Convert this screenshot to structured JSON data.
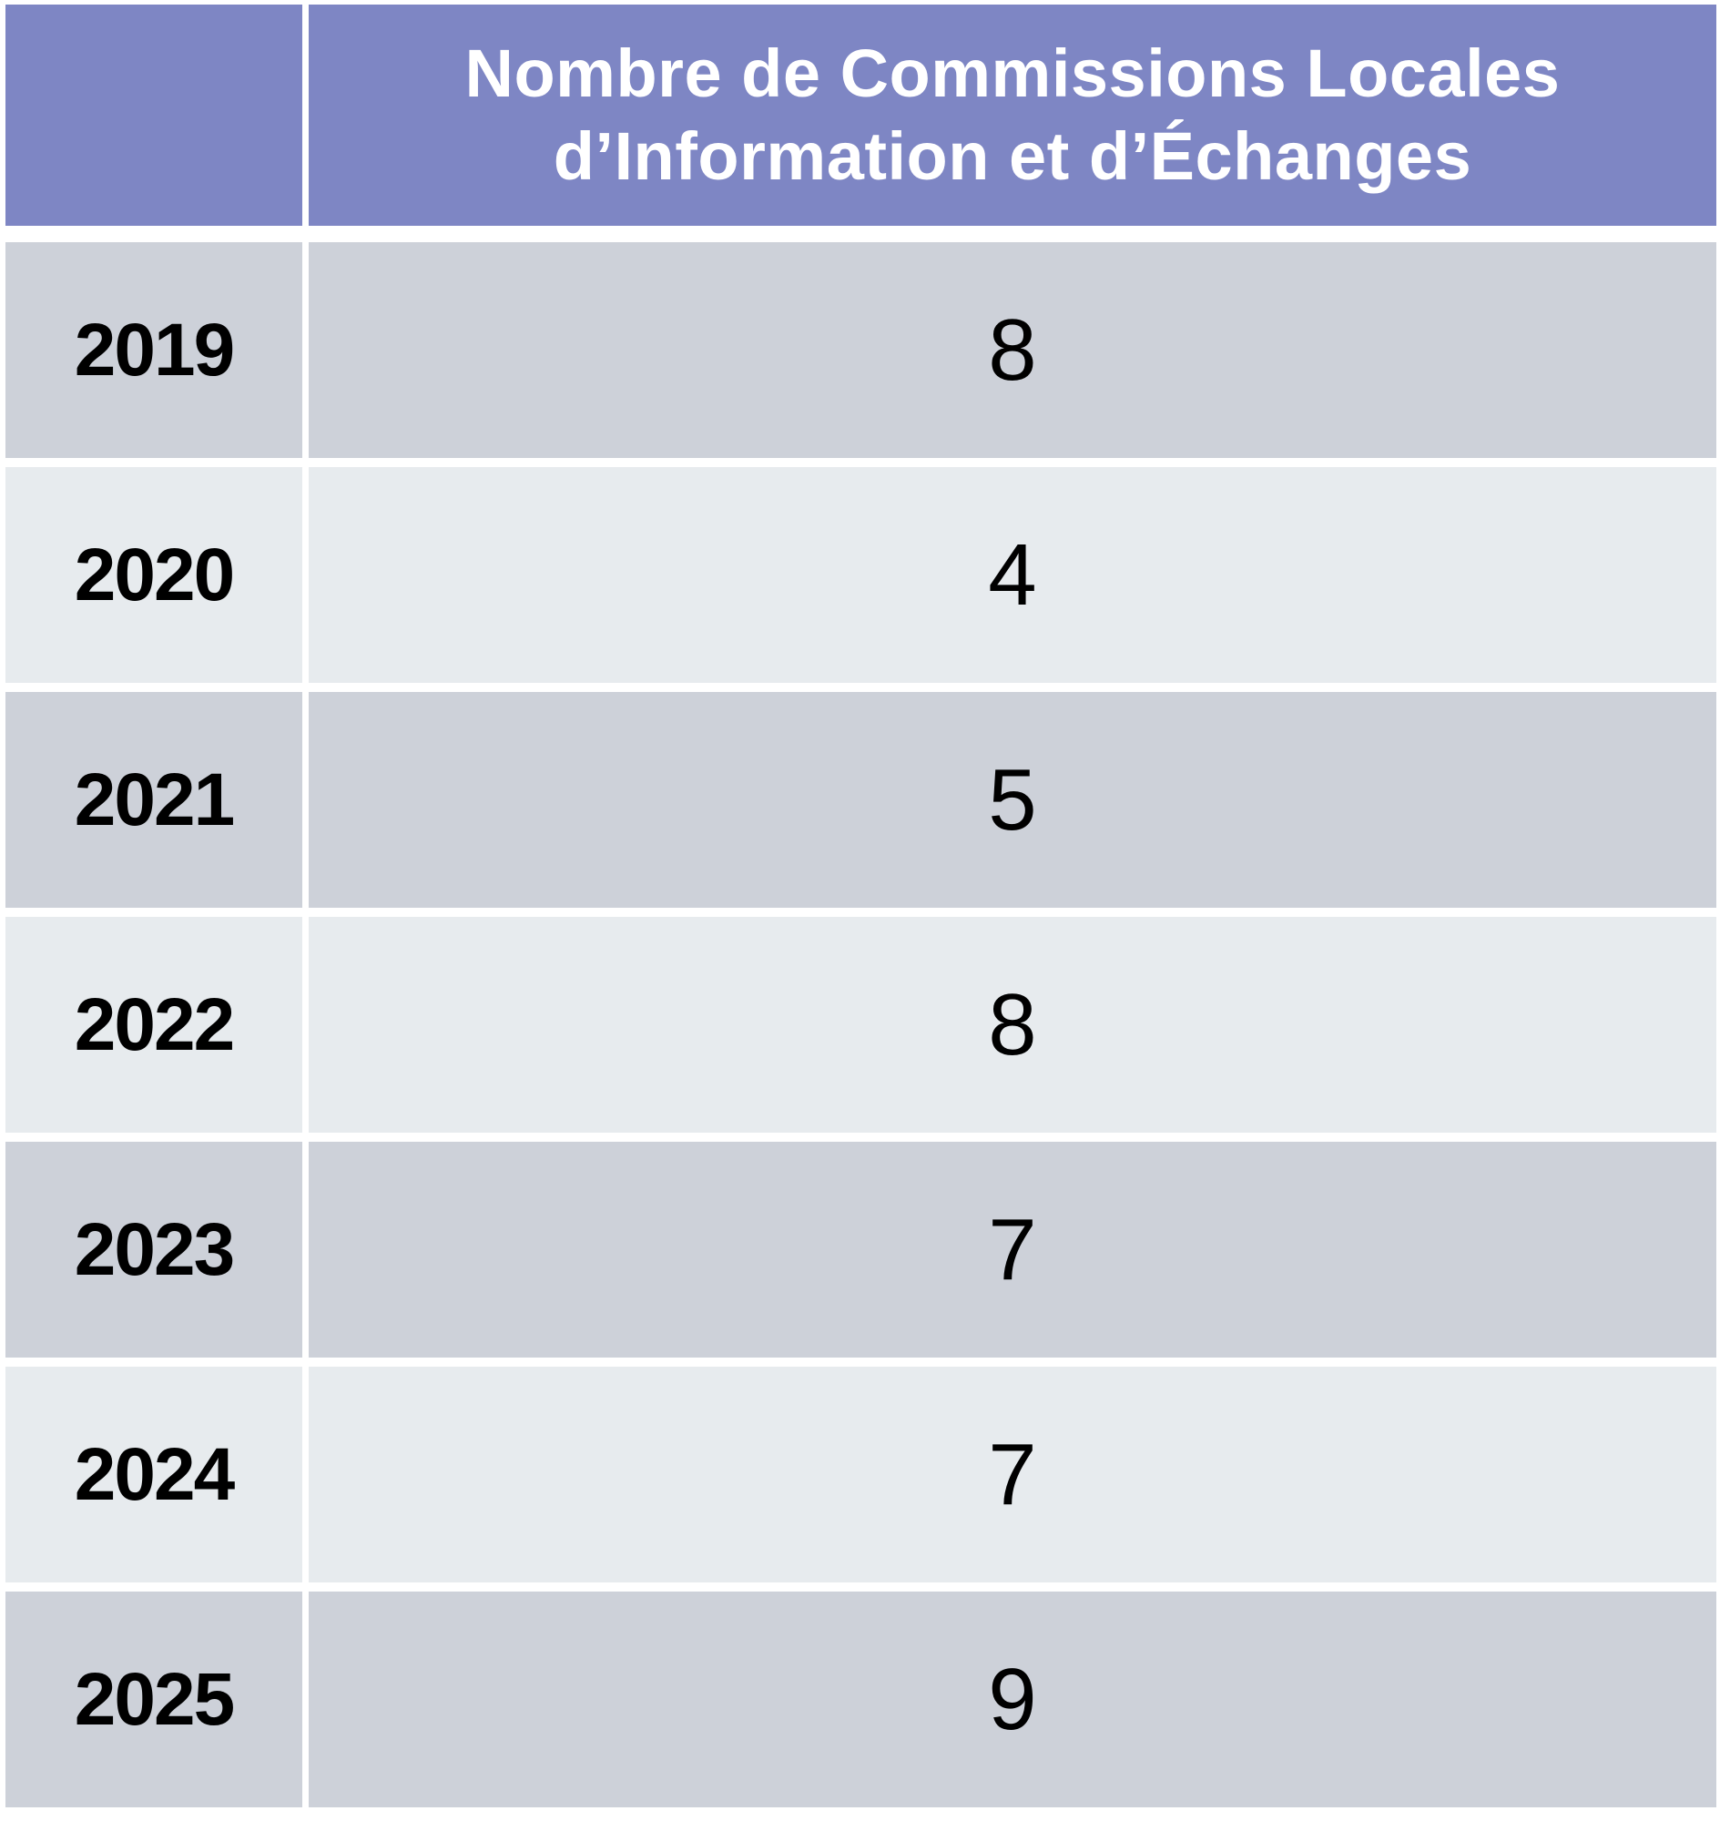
{
  "table": {
    "header": {
      "year_col_label": "",
      "title_full": "Nombre de Commissions Locales d’Information et d’Échanges",
      "title_lines": [
        "Nombre de Commissions Locales",
        "d’Information et d’Échanges"
      ]
    },
    "rows": [
      {
        "year": "2019",
        "value": "8"
      },
      {
        "year": "2020",
        "value": "4"
      },
      {
        "year": "2021",
        "value": "5"
      },
      {
        "year": "2022",
        "value": "8"
      },
      {
        "year": "2023",
        "value": "7"
      },
      {
        "year": "2024",
        "value": "7"
      },
      {
        "year": "2025",
        "value": "9"
      }
    ],
    "colors": {
      "header_bg": "#7e86c4",
      "header_text": "#ffffff",
      "row_dark": "#cdd1d9",
      "row_light": "#e7ebee",
      "gap": "#ffffff",
      "cell_text": "#000000"
    }
  },
  "chart_data": {
    "type": "table",
    "title": "Nombre de Commissions Locales d’Information et d’Échanges",
    "categories": [
      "2019",
      "2020",
      "2021",
      "2022",
      "2023",
      "2024",
      "2025"
    ],
    "values": [
      8,
      4,
      5,
      8,
      7,
      7,
      9
    ],
    "layout_hints": {
      "first_column": "year",
      "header_style": "purple-banner",
      "row_striping": "alternating dark/light gray starting dark",
      "value_alignment": "center"
    }
  }
}
